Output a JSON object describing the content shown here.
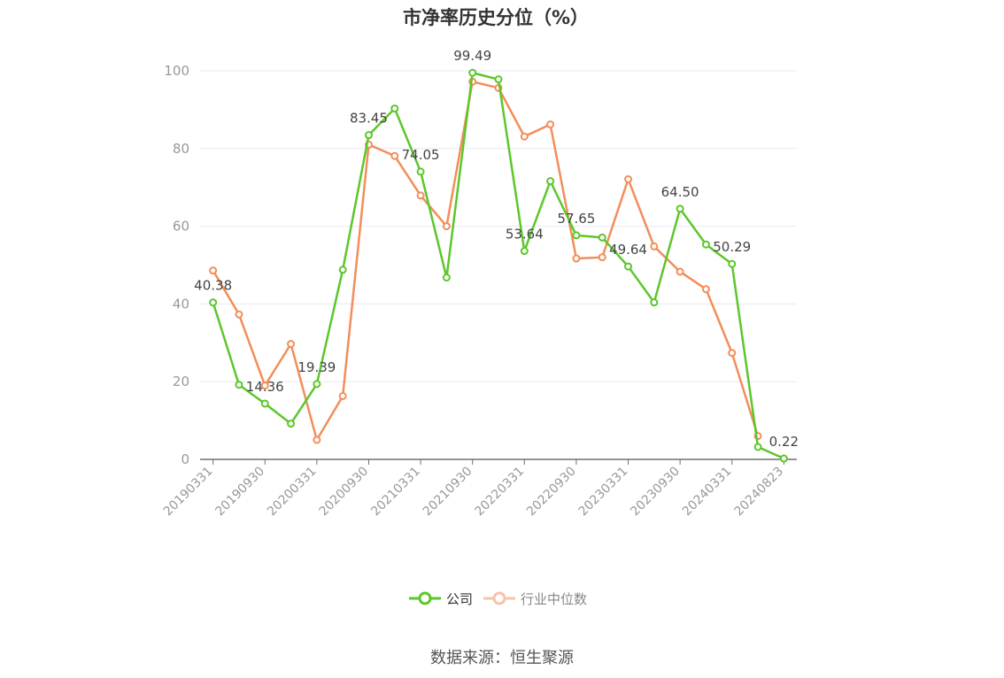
{
  "chart_data": {
    "type": "line",
    "title": "市净率历史分位（%）",
    "source": "数据来源：恒生聚源",
    "ylim": [
      0,
      100
    ],
    "y_ticks": [
      0,
      20,
      40,
      60,
      80,
      100
    ],
    "grid": true,
    "legend_position": "bottom-center",
    "x": [
      "20190331",
      "20190630",
      "20190930",
      "20191231",
      "20200331",
      "20200630",
      "20200930",
      "20201231",
      "20210331",
      "20210630",
      "20210930",
      "20211231",
      "20220331",
      "20220630",
      "20220930",
      "20221231",
      "20230331",
      "20230630",
      "20230930",
      "20231231",
      "20240331",
      "20240630",
      "20240823"
    ],
    "x_tick_labels": [
      "20190331",
      "20190930",
      "20200331",
      "20200930",
      "20210331",
      "20210930",
      "20220331",
      "20220930",
      "20230331",
      "20230930",
      "20240331",
      "20240823"
    ],
    "series": [
      {
        "name": "公司",
        "color": "#5cc72a",
        "values": [
          40.38,
          19.2,
          14.36,
          9.2,
          19.39,
          48.8,
          83.45,
          90.3,
          74.05,
          46.8,
          99.49,
          97.8,
          53.64,
          71.6,
          57.65,
          57.1,
          49.64,
          40.4,
          64.5,
          55.3,
          50.29,
          3.2,
          0.22
        ],
        "labels": {
          "0": "40.38",
          "2": "14.36",
          "4": "19.39",
          "6": "83.45",
          "8": "74.05",
          "10": "99.49",
          "12": "53.64",
          "14": "57.65",
          "16": "49.64",
          "18": "64.50",
          "20": "50.29",
          "22": "0.22"
        }
      },
      {
        "name": "行业中位数",
        "color": "#f28e5a",
        "values": [
          48.6,
          37.3,
          19.0,
          29.7,
          5.0,
          16.3,
          81.0,
          78.1,
          67.9,
          60.0,
          97.2,
          95.6,
          83.1,
          86.2,
          51.7,
          52.0,
          72.1,
          54.8,
          48.3,
          43.8,
          27.4,
          6.0,
          null
        ]
      }
    ]
  },
  "legend": {
    "company": "公司",
    "industry": "行业中位数"
  }
}
